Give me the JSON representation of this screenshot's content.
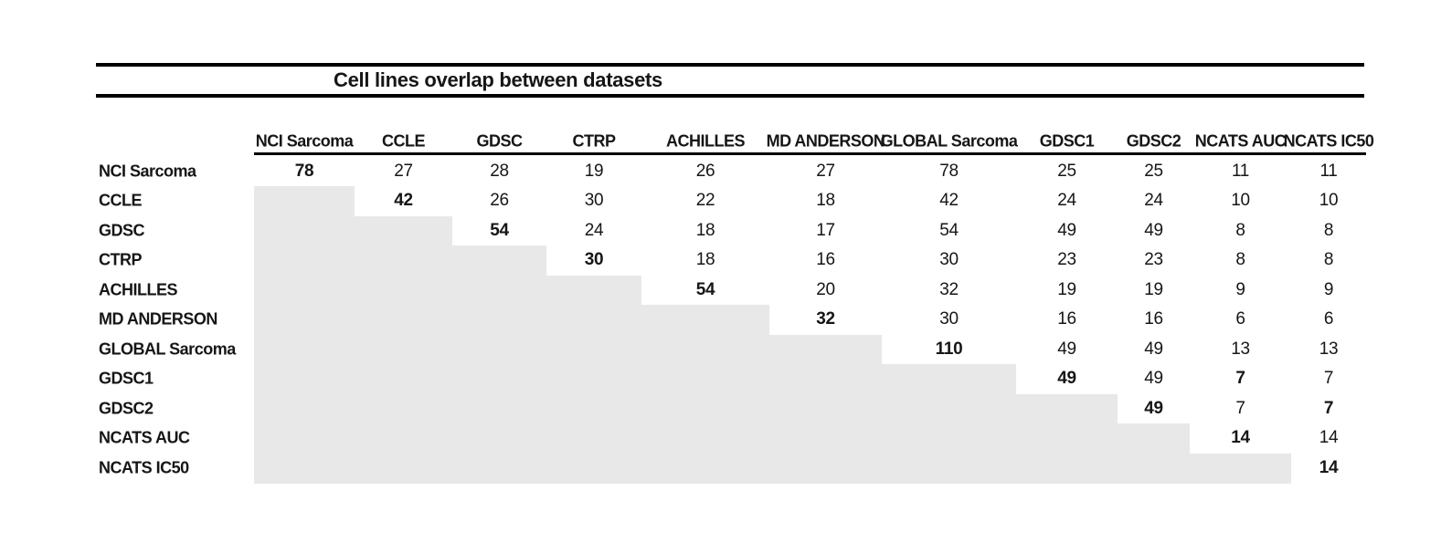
{
  "title": "Cell lines overlap between datasets",
  "colors": {
    "shade": "#e8e8e8",
    "text": "#161616",
    "rule": "#000000"
  },
  "chart_data": {
    "type": "table",
    "title": "Cell lines overlap between datasets",
    "column_labels": [
      "NCI Sarcoma",
      "CCLE",
      "GDSC",
      "CTRP",
      "ACHILLES",
      "MD ANDERSON",
      "GLOBAL Sarcoma",
      "GDSC1",
      "GDSC2",
      "NCATS AUC",
      "NCATS IC50"
    ],
    "row_labels": [
      "NCI Sarcoma",
      "CCLE",
      "GDSC",
      "CTRP",
      "ACHILLES",
      "MD ANDERSON",
      "GLOBAL Sarcoma",
      "GDSC1",
      "GDSC2",
      "NCATS AUC",
      "NCATS IC50"
    ],
    "matrix": [
      [
        78,
        27,
        28,
        19,
        26,
        27,
        78,
        25,
        25,
        11,
        11
      ],
      [
        null,
        42,
        26,
        30,
        22,
        18,
        42,
        24,
        24,
        10,
        10
      ],
      [
        null,
        null,
        54,
        24,
        18,
        17,
        54,
        49,
        49,
        8,
        8
      ],
      [
        null,
        null,
        null,
        30,
        18,
        16,
        30,
        23,
        23,
        8,
        8
      ],
      [
        null,
        null,
        null,
        null,
        54,
        20,
        32,
        19,
        19,
        9,
        9
      ],
      [
        null,
        null,
        null,
        null,
        null,
        32,
        30,
        16,
        16,
        6,
        6
      ],
      [
        null,
        null,
        null,
        null,
        null,
        null,
        110,
        49,
        49,
        13,
        13
      ],
      [
        null,
        null,
        null,
        null,
        null,
        null,
        null,
        49,
        49,
        7,
        7
      ],
      [
        null,
        null,
        null,
        null,
        null,
        null,
        null,
        null,
        49,
        7,
        7
      ],
      [
        null,
        null,
        null,
        null,
        null,
        null,
        null,
        null,
        null,
        14,
        14
      ],
      [
        null,
        null,
        null,
        null,
        null,
        null,
        null,
        null,
        null,
        null,
        14
      ]
    ],
    "bold_cells": [
      [
        0,
        0
      ],
      [
        1,
        1
      ],
      [
        2,
        2
      ],
      [
        3,
        3
      ],
      [
        4,
        4
      ],
      [
        5,
        5
      ],
      [
        6,
        6
      ],
      [
        7,
        7
      ],
      [
        8,
        8
      ],
      [
        9,
        9
      ],
      [
        10,
        10
      ],
      [
        7,
        9
      ],
      [
        8,
        10
      ]
    ],
    "shaded_lower_triangle": true,
    "grid": false,
    "legend": false
  }
}
